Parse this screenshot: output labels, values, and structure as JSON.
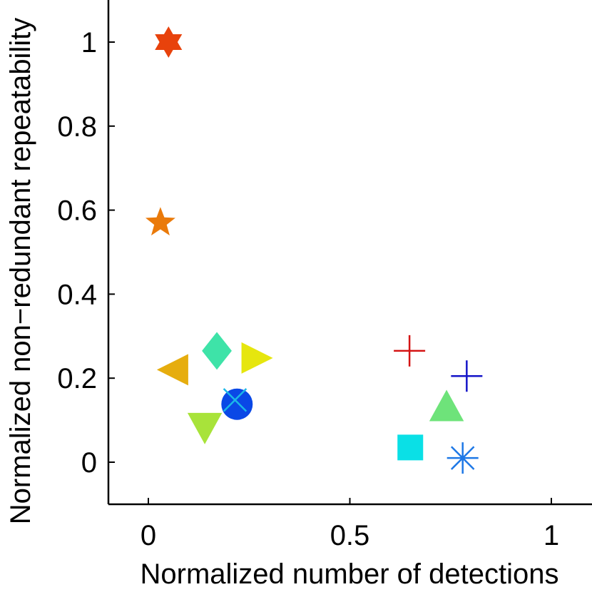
{
  "chart_data": {
    "type": "scatter",
    "title": "",
    "xlabel": "Normalized number of detections",
    "ylabel": "Normalized non−redundant repeatability",
    "xlim": [
      -0.1,
      1.1
    ],
    "ylim": [
      -0.1,
      1.1
    ],
    "xticks": [
      0,
      0.5,
      1
    ],
    "xtick_labels": [
      "0",
      "0.5",
      "1"
    ],
    "yticks": [
      0,
      0.2,
      0.4,
      0.6,
      0.8,
      1
    ],
    "ytick_labels": [
      "0",
      "0.2",
      "0.4",
      "0.6",
      "0.8",
      "1"
    ],
    "grid": false,
    "legend": "none",
    "points": [
      {
        "x": 0.05,
        "y": 1.0,
        "marker": "hexagram",
        "color": "#e8420c"
      },
      {
        "x": 0.03,
        "y": 0.57,
        "marker": "pentagram",
        "color": "#ea7a0a"
      },
      {
        "x": 0.06,
        "y": 0.22,
        "marker": "triangle-left",
        "color": "#e6ad0e"
      },
      {
        "x": 0.17,
        "y": 0.265,
        "marker": "diamond",
        "color": "#3ee3a8"
      },
      {
        "x": 0.27,
        "y": 0.248,
        "marker": "triangle-right",
        "color": "#e6e60e"
      },
      {
        "x": 0.14,
        "y": 0.08,
        "marker": "triangle-down",
        "color": "#a8e33a"
      },
      {
        "x": 0.22,
        "y": 0.138,
        "marker": "circle",
        "color": "#0a48e6"
      },
      {
        "x": 0.215,
        "y": 0.148,
        "marker": "x",
        "color": "#1ab8e8"
      },
      {
        "x": 0.648,
        "y": 0.265,
        "marker": "plus",
        "color": "#d41414"
      },
      {
        "x": 0.79,
        "y": 0.205,
        "marker": "plus",
        "color": "#1414c8"
      },
      {
        "x": 0.74,
        "y": 0.135,
        "marker": "triangle-up",
        "color": "#6ee37a"
      },
      {
        "x": 0.65,
        "y": 0.035,
        "marker": "square",
        "color": "#0ae0e6"
      },
      {
        "x": 0.78,
        "y": 0.01,
        "marker": "asterisk",
        "color": "#1e78e6"
      }
    ]
  }
}
